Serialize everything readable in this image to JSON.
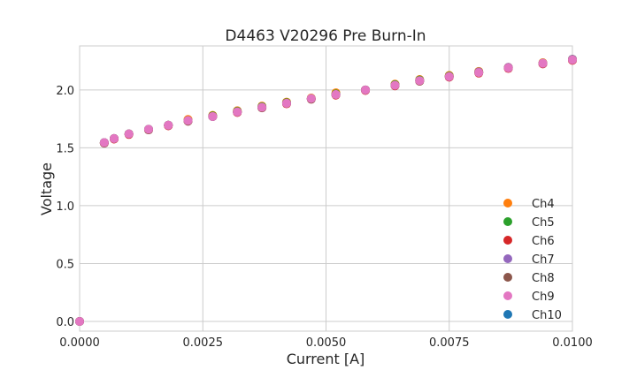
{
  "chart_data": {
    "type": "scatter",
    "title": "D4463 V20296 Pre Burn-In",
    "xlabel": "Current [A]",
    "ylabel": "Voltage",
    "xlim": [
      0,
      0.01
    ],
    "ylim": [
      -0.084,
      2.38
    ],
    "xticks": [
      0,
      0.0025,
      0.005,
      0.0075,
      0.01
    ],
    "xtick_labels": [
      "0.0000",
      "0.0025",
      "0.0050",
      "0.0075",
      "0.0100"
    ],
    "yticks": [
      0,
      0.5,
      1.0,
      1.5,
      2.0
    ],
    "ytick_labels": [
      "0.0",
      "0.5",
      "1.0",
      "1.5",
      "2.0"
    ],
    "grid": true,
    "legend_placement": "lower-right",
    "x": [
      0,
      0.0005,
      0.0007,
      0.001,
      0.0014,
      0.0018,
      0.0022,
      0.0027,
      0.0032,
      0.0037,
      0.0042,
      0.0047,
      0.0052,
      0.0058,
      0.0064,
      0.0069,
      0.0075,
      0.0081,
      0.0087,
      0.0094,
      0.01
    ],
    "series": [
      {
        "name": "Ch10",
        "color": "#1f77b4",
        "values": [
          0,
          1.545,
          1.58,
          1.62,
          1.66,
          1.695,
          1.735,
          1.77,
          1.81,
          1.85,
          1.885,
          1.925,
          1.96,
          2.0,
          2.04,
          2.08,
          2.115,
          2.15,
          2.19,
          2.23,
          2.26
        ]
      },
      {
        "name": "Ch4",
        "color": "#ff7f0e",
        "values": [
          0,
          1.545,
          1.58,
          1.62,
          1.66,
          1.695,
          1.745,
          1.78,
          1.82,
          1.86,
          1.895,
          1.93,
          1.975,
          2.0,
          2.05,
          2.09,
          2.125,
          2.16,
          2.195,
          2.235,
          2.265
        ]
      },
      {
        "name": "Ch5",
        "color": "#2ca02c",
        "values": [
          0,
          1.545,
          1.58,
          1.62,
          1.66,
          1.695,
          1.735,
          1.775,
          1.815,
          1.855,
          1.89,
          1.925,
          1.965,
          2.0,
          2.045,
          2.085,
          2.12,
          2.155,
          2.19,
          2.23,
          2.265
        ]
      },
      {
        "name": "Ch6",
        "color": "#d62728",
        "values": [
          0,
          1.54,
          1.575,
          1.615,
          1.655,
          1.69,
          1.73,
          1.77,
          1.805,
          1.845,
          1.88,
          1.92,
          1.955,
          1.995,
          2.035,
          2.075,
          2.11,
          2.145,
          2.185,
          2.225,
          2.255
        ]
      },
      {
        "name": "Ch7",
        "color": "#9467bd",
        "values": [
          0,
          1.545,
          1.58,
          1.62,
          1.66,
          1.695,
          1.735,
          1.77,
          1.81,
          1.85,
          1.885,
          1.925,
          1.96,
          2.0,
          2.04,
          2.08,
          2.115,
          2.155,
          2.195,
          2.23,
          2.265
        ]
      },
      {
        "name": "Ch8",
        "color": "#8c564b",
        "values": [
          0,
          1.54,
          1.58,
          1.62,
          1.655,
          1.695,
          1.73,
          1.77,
          1.81,
          1.845,
          1.885,
          1.92,
          1.96,
          2.0,
          2.04,
          2.075,
          2.115,
          2.15,
          2.19,
          2.23,
          2.26
        ]
      },
      {
        "name": "Ch9",
        "color": "#e377c2",
        "values": [
          0,
          1.545,
          1.58,
          1.62,
          1.66,
          1.695,
          1.735,
          1.77,
          1.81,
          1.85,
          1.885,
          1.925,
          1.96,
          2.0,
          2.04,
          2.08,
          2.115,
          2.15,
          2.19,
          2.23,
          2.26
        ]
      }
    ],
    "legend_order": [
      "Ch4",
      "Ch5",
      "Ch6",
      "Ch7",
      "Ch8",
      "Ch9",
      "Ch10"
    ]
  }
}
